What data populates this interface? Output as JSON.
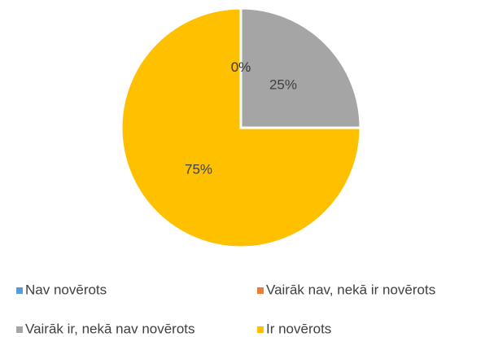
{
  "chart_data": {
    "type": "pie",
    "categories": [
      "Nav novērots",
      "Vairāk nav, nekā ir novērots",
      "Vairāk ir, nekā nav novērots",
      "Ir novērots"
    ],
    "values": [
      0,
      0,
      25,
      75
    ],
    "value_labels": [
      "0%",
      "0%",
      "25%",
      "75%"
    ],
    "colors": [
      "#5b9bd5",
      "#ed7d31",
      "#a5a5a5",
      "#ffc000"
    ],
    "legend": "bottom"
  }
}
